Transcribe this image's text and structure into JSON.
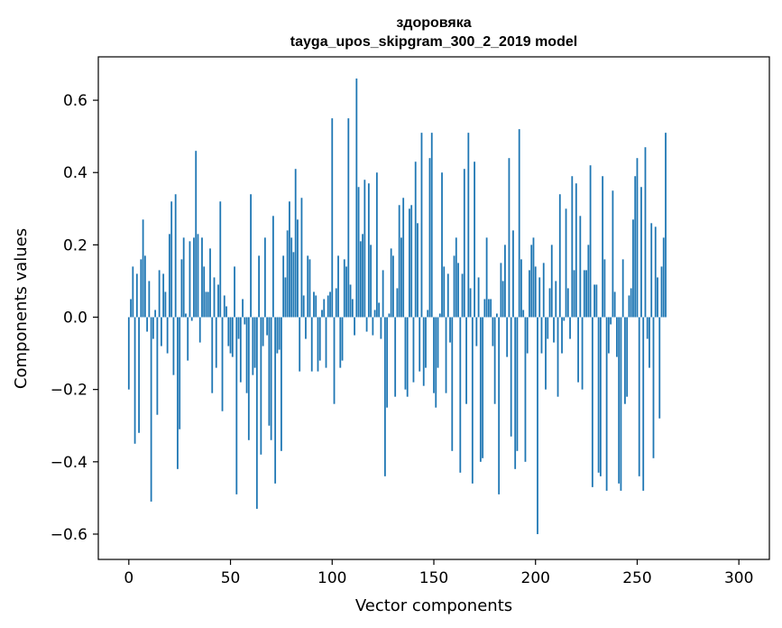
{
  "chart_data": {
    "type": "bar",
    "title": "здоровяка",
    "subtitle": "tayga_upos_skipgram_300_2_2019 model",
    "xlabel": "Vector components",
    "ylabel": "Components values",
    "xlim": [
      -15,
      315
    ],
    "ylim": [
      -0.67,
      0.72
    ],
    "xticks": [
      0,
      50,
      100,
      150,
      200,
      250,
      300
    ],
    "xtick_labels": [
      "0",
      "50",
      "100",
      "150",
      "200",
      "250",
      "300"
    ],
    "yticks": [
      -0.6,
      -0.4,
      -0.2,
      0.0,
      0.2,
      0.4,
      0.6
    ],
    "ytick_labels": [
      "−0.6",
      "−0.4",
      "−0.2",
      "0.0",
      "0.2",
      "0.4",
      "0.6"
    ],
    "grid": false,
    "bar_color": "#1f77b4",
    "series": [
      {
        "values": [
          -0.2,
          0.05,
          0.14,
          -0.35,
          0.12,
          -0.32,
          0.16,
          0.27,
          0.17,
          -0.04,
          0.1,
          -0.51,
          -0.06,
          0.02,
          -0.27,
          0.13,
          -0.08,
          0.12,
          0.07,
          -0.1,
          0.23,
          0.32,
          -0.16,
          0.34,
          -0.42,
          -0.31,
          0.16,
          0.22,
          0.01,
          -0.12,
          0.21,
          -0.01,
          0.22,
          0.46,
          0.23,
          -0.07,
          0.22,
          0.14,
          0.07,
          0.07,
          0.19,
          -0.21,
          0.11,
          -0.14,
          0.09,
          0.32,
          -0.26,
          0.06,
          0.03,
          -0.08,
          -0.1,
          -0.11,
          0.14,
          -0.49,
          -0.06,
          -0.18,
          0.05,
          -0.02,
          -0.21,
          -0.34,
          0.34,
          -0.16,
          -0.14,
          -0.53,
          0.17,
          -0.38,
          -0.08,
          0.22,
          -0.05,
          -0.3,
          -0.34,
          0.28,
          -0.46,
          -0.1,
          -0.09,
          -0.37,
          0.17,
          0.11,
          0.24,
          0.32,
          0.22,
          0.18,
          0.41,
          0.27,
          -0.15,
          0.33,
          0.06,
          -0.06,
          0.17,
          0.16,
          -0.15,
          0.07,
          0.06,
          -0.15,
          -0.12,
          0.02,
          0.05,
          -0.14,
          0.06,
          0.07,
          0.55,
          -0.24,
          0.08,
          0.17,
          -0.14,
          -0.12,
          0.16,
          0.14,
          0.55,
          0.09,
          0.05,
          -0.05,
          0.66,
          0.36,
          0.21,
          0.23,
          0.38,
          -0.04,
          0.37,
          0.2,
          -0.05,
          0.02,
          0.4,
          0.04,
          -0.06,
          0.13,
          -0.44,
          -0.25,
          0.01,
          0.19,
          0.17,
          -0.22,
          0.08,
          0.31,
          0.22,
          0.33,
          -0.2,
          -0.22,
          0.3,
          0.31,
          -0.18,
          0.43,
          0.26,
          -0.15,
          0.51,
          -0.19,
          -0.14,
          0.02,
          0.44,
          0.51,
          -0.21,
          -0.25,
          -0.14,
          0.01,
          0.4,
          0.14,
          -0.21,
          0.12,
          -0.07,
          -0.37,
          0.17,
          0.22,
          0.15,
          -0.43,
          0.12,
          0.41,
          -0.24,
          0.51,
          0.08,
          -0.46,
          0.43,
          -0.08,
          0.11,
          -0.4,
          -0.39,
          0.05,
          0.22,
          0.05,
          0.05,
          -0.08,
          -0.24,
          0.01,
          -0.49,
          0.15,
          0.1,
          0.2,
          -0.11,
          0.44,
          -0.33,
          0.24,
          -0.42,
          -0.37,
          0.52,
          0.16,
          0.02,
          -0.4,
          -0.1,
          0.13,
          0.2,
          0.22,
          0.14,
          -0.6,
          0.11,
          -0.1,
          0.15,
          -0.2,
          -0.06,
          0.08,
          0.2,
          -0.07,
          0.1,
          -0.22,
          0.34,
          -0.1,
          -0.01,
          0.3,
          0.08,
          -0.06,
          0.39,
          0.13,
          0.37,
          -0.18,
          0.28,
          -0.2,
          0.13,
          0.13,
          0.2,
          0.42,
          -0.47,
          0.09,
          0.09,
          -0.43,
          -0.44,
          0.39,
          0.16,
          -0.48,
          -0.1,
          -0.02,
          0.35,
          0.07,
          -0.11,
          -0.46,
          -0.48,
          0.16,
          -0.24,
          -0.22,
          0.06,
          0.08,
          0.27,
          0.39,
          0.44,
          -0.44,
          0.36,
          -0.48,
          0.47,
          -0.06,
          -0.14,
          0.26,
          -0.39,
          0.25,
          0.11,
          -0.28,
          0.14,
          0.22,
          0.51
        ]
      }
    ]
  }
}
